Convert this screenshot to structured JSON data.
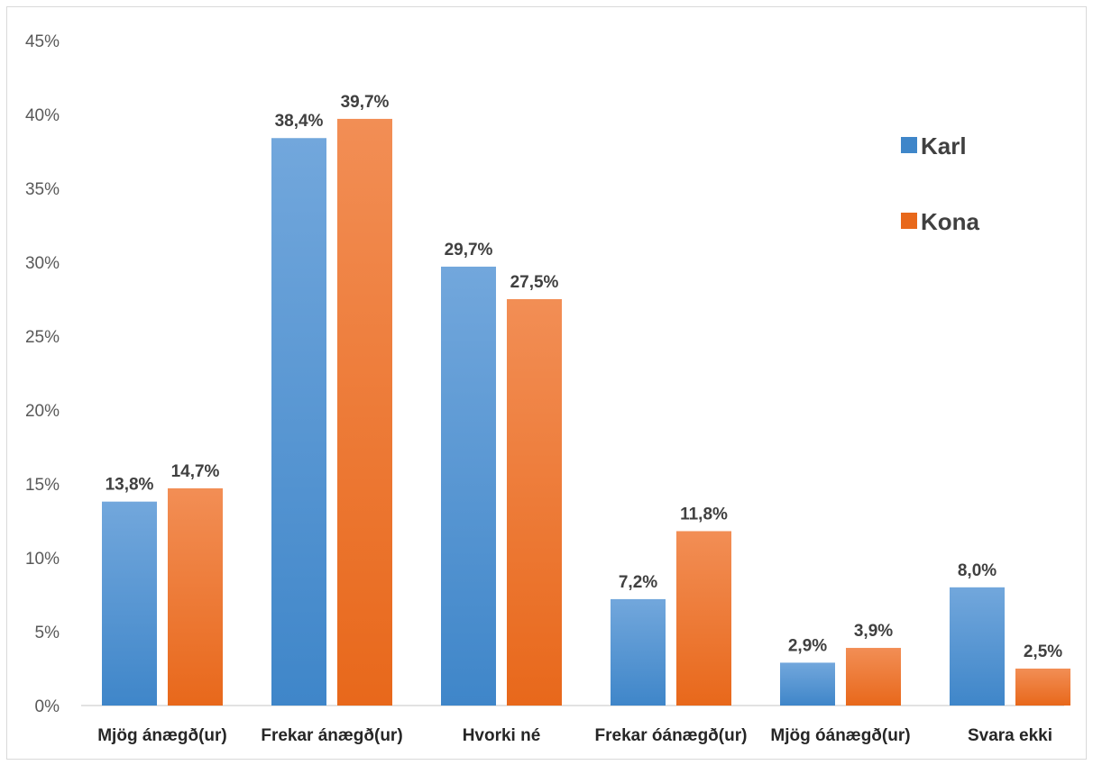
{
  "chart_data": {
    "type": "bar",
    "title": "",
    "xlabel": "",
    "ylabel": "",
    "categories": [
      "Mjög ánægð(ur)",
      "Frekar ánægð(ur)",
      "Hvorki né",
      "Frekar óánægð(ur)",
      "Mjög óánægð(ur)",
      "Svara ekki"
    ],
    "series": [
      {
        "name": "Karl",
        "values": [
          13.8,
          38.4,
          29.7,
          7.2,
          2.9,
          8.0
        ],
        "labels": [
          "13,8%",
          "38,4%",
          "29,7%",
          "7,2%",
          "2,9%",
          "8,0%"
        ],
        "color_top": "#72a7dc",
        "color_bottom": "#3f86c9"
      },
      {
        "name": "Kona",
        "values": [
          14.7,
          39.7,
          27.5,
          11.8,
          3.9,
          2.5
        ],
        "labels": [
          "14,7%",
          "39,7%",
          "27,5%",
          "11,8%",
          "3,9%",
          "2,5%"
        ],
        "color_top": "#f28e55",
        "color_bottom": "#e8681b"
      }
    ],
    "ylim": [
      0,
      45
    ],
    "yticks": [
      0,
      5,
      10,
      15,
      20,
      25,
      30,
      35,
      40,
      45
    ],
    "ytick_labels": [
      "0%",
      "5%",
      "10%",
      "15%",
      "20%",
      "25%",
      "30%",
      "35%",
      "40%",
      "45%"
    ],
    "grid": false,
    "legend_position": "top-right"
  }
}
